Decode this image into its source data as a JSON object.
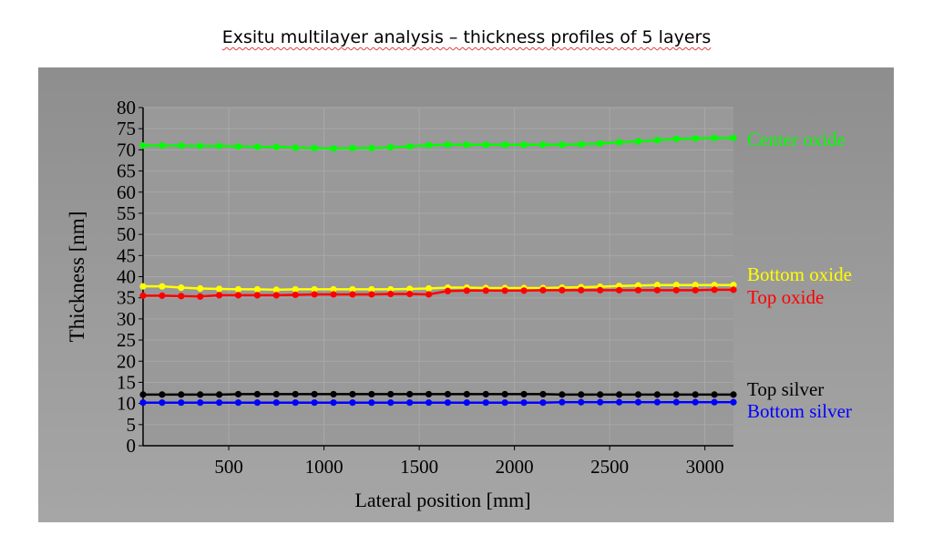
{
  "page_title": "Exsitu multilayer analysis – thickness profiles of 5 layers",
  "chart_data": {
    "type": "line",
    "title": "",
    "xlabel": "Lateral position [mm]",
    "ylabel": "Thickness [nm]",
    "xlim": [
      50,
      3150
    ],
    "ylim": [
      0,
      80
    ],
    "xticks": [
      500,
      1000,
      1500,
      2000,
      2500,
      3000
    ],
    "yticks": [
      0,
      5,
      10,
      15,
      20,
      25,
      30,
      35,
      40,
      45,
      50,
      55,
      60,
      65,
      70,
      75,
      80
    ],
    "grid": true,
    "legend": "inline-right",
    "x": [
      50,
      150,
      250,
      350,
      450,
      550,
      650,
      750,
      850,
      950,
      1050,
      1150,
      1250,
      1350,
      1450,
      1550,
      1650,
      1750,
      1850,
      1950,
      2050,
      2150,
      2250,
      2350,
      2450,
      2550,
      2650,
      2750,
      2850,
      2950,
      3050,
      3150
    ],
    "series": [
      {
        "name": "Center oxide",
        "color": "#00ff00",
        "values": [
          71.0,
          71.0,
          71.0,
          70.9,
          70.9,
          70.8,
          70.7,
          70.7,
          70.5,
          70.4,
          70.3,
          70.4,
          70.4,
          70.6,
          70.8,
          71.1,
          71.2,
          71.2,
          71.2,
          71.2,
          71.2,
          71.2,
          71.2,
          71.3,
          71.5,
          71.8,
          72.0,
          72.3,
          72.6,
          72.7,
          72.8,
          72.8
        ]
      },
      {
        "name": "Bottom oxide",
        "color": "#ffff00",
        "values": [
          37.7,
          37.7,
          37.4,
          37.2,
          37.1,
          37.0,
          37.0,
          36.9,
          37.0,
          37.0,
          37.0,
          37.0,
          37.0,
          37.0,
          37.1,
          37.2,
          37.4,
          37.4,
          37.3,
          37.3,
          37.3,
          37.3,
          37.4,
          37.5,
          37.6,
          37.8,
          37.9,
          38.0,
          38.0,
          38.0,
          38.0,
          38.0
        ]
      },
      {
        "name": "Top oxide",
        "color": "#ff0000",
        "values": [
          35.5,
          35.5,
          35.4,
          35.3,
          35.6,
          35.6,
          35.6,
          35.6,
          35.7,
          35.8,
          35.8,
          35.8,
          35.8,
          35.9,
          35.9,
          35.8,
          36.6,
          36.7,
          36.7,
          36.7,
          36.7,
          36.8,
          36.8,
          36.8,
          36.8,
          36.8,
          36.8,
          36.8,
          36.8,
          36.8,
          36.9,
          36.9
        ]
      },
      {
        "name": "Top silver",
        "color": "#000000",
        "values": [
          12.1,
          12.1,
          12.1,
          12.1,
          12.1,
          12.2,
          12.2,
          12.2,
          12.2,
          12.2,
          12.2,
          12.2,
          12.2,
          12.2,
          12.2,
          12.2,
          12.2,
          12.2,
          12.2,
          12.2,
          12.2,
          12.2,
          12.1,
          12.1,
          12.1,
          12.1,
          12.1,
          12.1,
          12.1,
          12.1,
          12.1,
          12.1
        ]
      },
      {
        "name": "Bottom silver",
        "color": "#0000ff",
        "values": [
          10.2,
          10.2,
          10.2,
          10.2,
          10.2,
          10.2,
          10.2,
          10.2,
          10.2,
          10.2,
          10.2,
          10.2,
          10.2,
          10.2,
          10.2,
          10.2,
          10.2,
          10.2,
          10.2,
          10.2,
          10.2,
          10.2,
          10.3,
          10.3,
          10.3,
          10.3,
          10.3,
          10.3,
          10.3,
          10.3,
          10.3,
          10.3
        ]
      }
    ],
    "series_labels": [
      {
        "text": "Center oxide",
        "color": "#00ff00"
      },
      {
        "text": "Bottom oxide",
        "color": "#ffff00"
      },
      {
        "text": "Top oxide",
        "color": "#ff0000"
      },
      {
        "text": "Top silver",
        "color": "#000000"
      },
      {
        "text": "Bottom silver",
        "color": "#0000ff"
      }
    ]
  }
}
